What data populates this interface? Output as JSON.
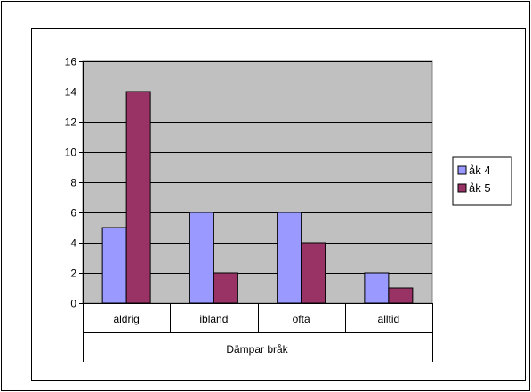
{
  "chart_data": {
    "type": "bar",
    "title": "",
    "xlabel": "Dämpar bråk",
    "ylabel": "",
    "categories": [
      "aldrig",
      "ibland",
      "ofta",
      "alltid"
    ],
    "series": [
      {
        "name": "åk 4",
        "values": [
          5,
          6,
          6,
          2
        ],
        "color": "#9999ff"
      },
      {
        "name": "åk 5",
        "values": [
          14,
          2,
          4,
          1
        ],
        "color": "#993366"
      }
    ],
    "ylim": [
      0,
      16
    ],
    "yticks": [
      0,
      2,
      4,
      6,
      8,
      10,
      12,
      14,
      16
    ],
    "grid": true,
    "legend": "right",
    "plot_background": "#c0c0c0"
  }
}
